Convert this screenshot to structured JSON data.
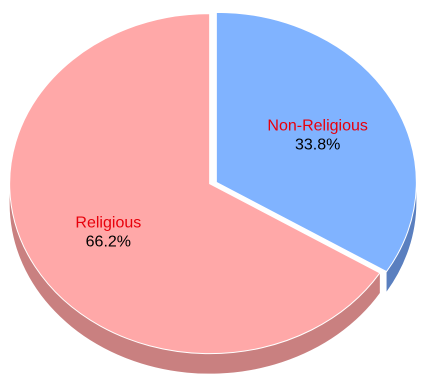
{
  "chart_data": {
    "type": "pie",
    "title": "",
    "slices": [
      {
        "label": "Non-Religious",
        "value": 33.8,
        "value_label": "33.8%",
        "color": "#80b3ff",
        "side_color": "#5a7fbf"
      },
      {
        "label": "Religious",
        "value": 66.2,
        "value_label": "66.2%",
        "color": "#ffa8a8",
        "side_color": "#c98080"
      }
    ],
    "label_color": "#e8000b",
    "three_d": true,
    "exploded": true,
    "start_angle": "12 o'clock",
    "direction": "clockwise",
    "legend": "none"
  }
}
